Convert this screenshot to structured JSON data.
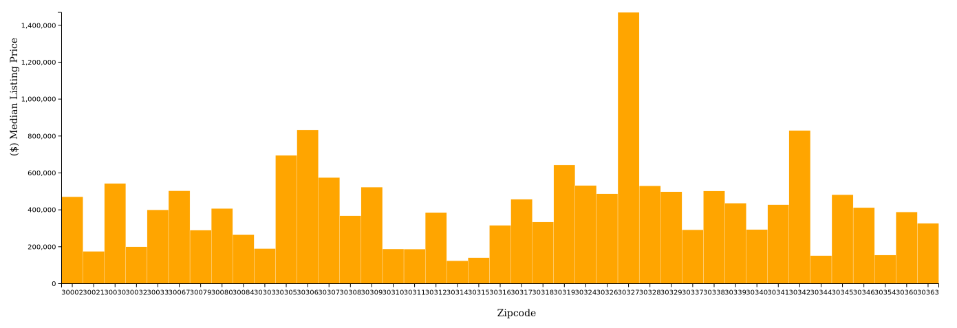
{
  "chart_data": {
    "type": "bar",
    "xlabel": "Zipcode",
    "ylabel": "($) Median Listing Price",
    "ylim": [
      0,
      1470000
    ],
    "yticks": [
      0,
      200000,
      400000,
      600000,
      800000,
      1000000,
      1200000,
      1400000
    ],
    "ytick_labels": [
      "0",
      "200,000",
      "400,000",
      "600,000",
      "800,000",
      "1,000,000",
      "1,200,000",
      "1,400,000"
    ],
    "bar_color": "#ffa500",
    "grid": false,
    "legend": "none",
    "categories": [
      "30002",
      "30021",
      "30030",
      "30032",
      "30033",
      "30067",
      "30079",
      "30080",
      "30084",
      "30303",
      "30305",
      "30306",
      "30307",
      "30308",
      "30309",
      "30310",
      "30311",
      "30312",
      "30314",
      "30315",
      "30316",
      "30317",
      "30318",
      "30319",
      "30324",
      "30326",
      "30327",
      "30328",
      "30329",
      "30337",
      "30338",
      "30339",
      "30340",
      "30341",
      "30342",
      "30344",
      "30345",
      "30346",
      "30354",
      "30360",
      "30363"
    ],
    "values": [
      471000,
      175000,
      543000,
      200000,
      400000,
      503000,
      290000,
      407000,
      265000,
      190000,
      695000,
      833000,
      575000,
      368000,
      523000,
      188000,
      187000,
      385000,
      124000,
      141000,
      316000,
      457000,
      334000,
      643000,
      532000,
      487000,
      1470000,
      530000,
      498000,
      292000,
      502000,
      436000,
      293000,
      428000,
      830000,
      152000,
      482000,
      412000,
      155000,
      388000,
      327000
    ]
  }
}
